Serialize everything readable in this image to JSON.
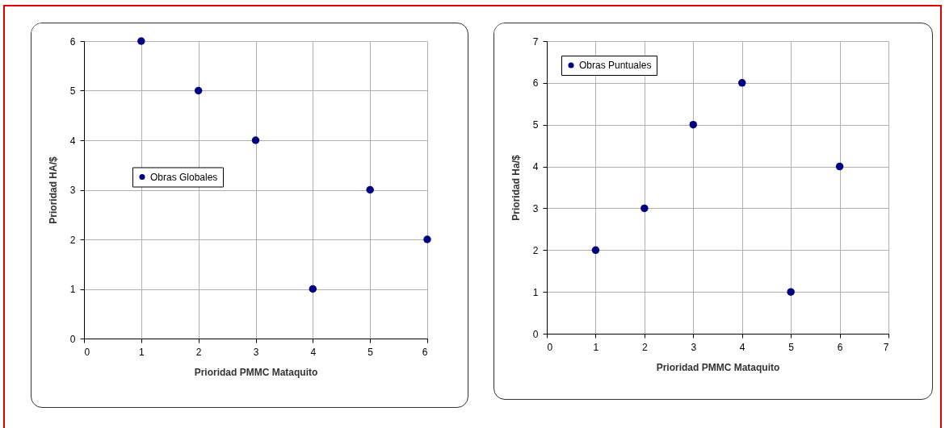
{
  "chart_data": [
    {
      "type": "scatter",
      "xlabel": "Prioridad PMMC Mataquito",
      "ylabel": "Prioridad HA/$",
      "x": [
        1,
        2,
        3,
        4,
        5,
        6
      ],
      "series": [
        {
          "name": "Obras Globales",
          "color": "#000080",
          "values": [
            6,
            5,
            4,
            1,
            3,
            2
          ]
        }
      ],
      "xlim": [
        0,
        6
      ],
      "xticks": [
        0,
        1,
        2,
        3,
        4,
        5,
        6
      ],
      "ylim": [
        0,
        6
      ],
      "yticks": [
        0,
        1,
        2,
        3,
        4,
        5,
        6
      ],
      "grid": true,
      "legend": "left",
      "marker": "circle"
    },
    {
      "type": "scatter",
      "xlabel": "Prioridad PMMC Mataquito",
      "ylabel": "Prioridad Ha/$",
      "x": [
        1,
        2,
        3,
        4,
        5,
        6
      ],
      "series": [
        {
          "name": "Obras Puntuales",
          "color": "#000080",
          "values": [
            2,
            3,
            5,
            6,
            1,
            4
          ]
        }
      ],
      "xlim": [
        0,
        7
      ],
      "xticks": [
        0,
        1,
        2,
        3,
        4,
        5,
        6,
        7
      ],
      "ylim": [
        0,
        7
      ],
      "yticks": [
        0,
        1,
        2,
        3,
        4,
        5,
        6,
        7
      ],
      "grid": true,
      "legend": "top left",
      "marker": "circle"
    }
  ]
}
